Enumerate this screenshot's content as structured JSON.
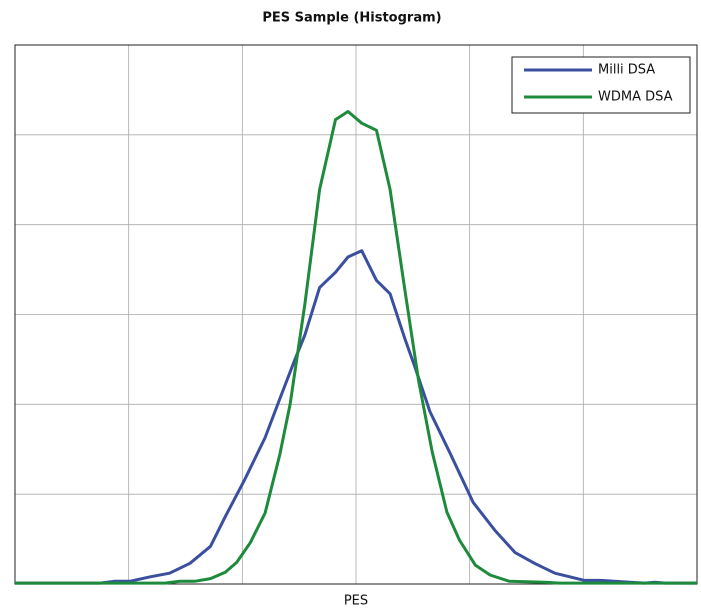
{
  "chart_data": {
    "type": "line",
    "title": "PES Sample (Histogram)",
    "x_label": "PES",
    "xlim": [
      0,
      6
    ],
    "xticks": [
      1,
      2,
      3,
      4,
      5
    ],
    "ylim": [
      0,
      6
    ],
    "yticks": [
      1,
      2,
      3,
      4,
      5
    ],
    "grid": true,
    "legend": "upper right",
    "series": [
      {
        "name": "Milli DSA",
        "color": "#3a4f9f",
        "x": [
          0,
          0.75,
          0.88,
          1.01,
          1.19,
          1.36,
          1.54,
          1.72,
          1.85,
          2.02,
          2.2,
          2.33,
          2.46,
          2.55,
          2.68,
          2.82,
          2.93,
          3.05,
          3.18,
          3.3,
          3.43,
          3.52,
          3.65,
          3.83,
          4.03,
          4.22,
          4.4,
          4.57,
          4.75,
          4.88,
          5.01,
          5.15,
          5.41,
          5.54,
          5.63,
          5.72,
          6
        ],
        "values": [
          0.01,
          0.01,
          0.03,
          0.03,
          0.08,
          0.12,
          0.23,
          0.42,
          0.75,
          1.16,
          1.63,
          2.06,
          2.49,
          2.77,
          3.3,
          3.47,
          3.64,
          3.71,
          3.38,
          3.23,
          2.73,
          2.41,
          1.92,
          1.45,
          0.91,
          0.6,
          0.35,
          0.23,
          0.12,
          0.08,
          0.04,
          0.04,
          0.02,
          0.01,
          0.02,
          0.01,
          0.01
        ]
      },
      {
        "name": "WDMA DSA",
        "color": "#1e8a3c",
        "x": [
          0,
          1.32,
          1.45,
          1.58,
          1.72,
          1.85,
          1.95,
          2.07,
          2.2,
          2.33,
          2.42,
          2.55,
          2.68,
          2.82,
          2.93,
          3.05,
          3.18,
          3.3,
          3.43,
          3.55,
          3.67,
          3.8,
          3.91,
          4.05,
          4.18,
          4.35,
          4.66,
          4.79,
          6
        ],
        "values": [
          0.01,
          0.01,
          0.03,
          0.03,
          0.06,
          0.13,
          0.24,
          0.46,
          0.79,
          1.44,
          2.0,
          3.11,
          4.39,
          5.17,
          5.26,
          5.13,
          5.05,
          4.39,
          3.27,
          2.27,
          1.47,
          0.8,
          0.49,
          0.21,
          0.1,
          0.03,
          0.02,
          0.01,
          0.01
        ]
      }
    ]
  }
}
